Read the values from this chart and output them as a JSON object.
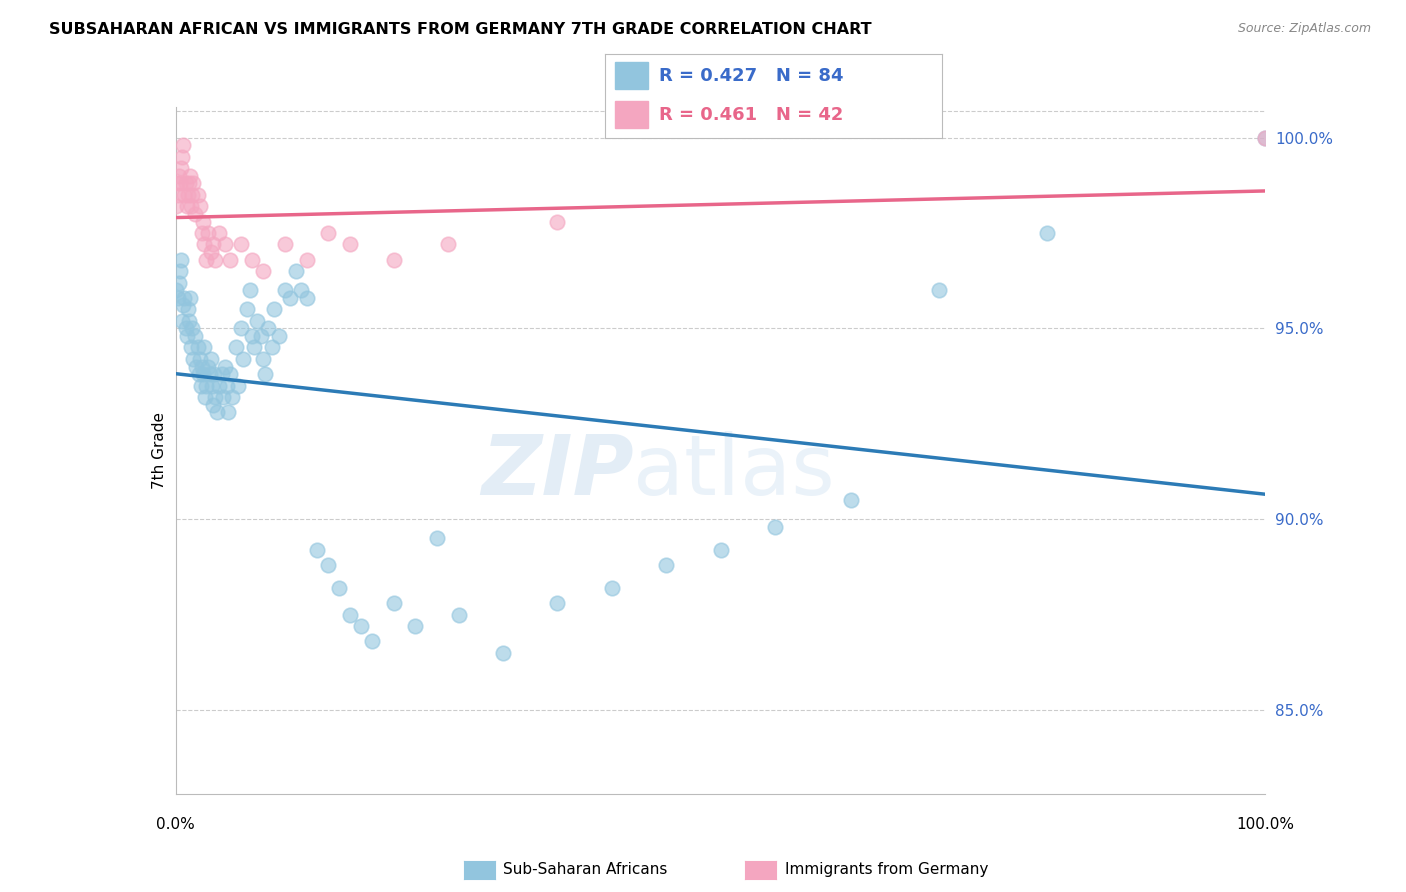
{
  "title": "SUBSAHARAN AFRICAN VS IMMIGRANTS FROM GERMANY 7TH GRADE CORRELATION CHART",
  "source": "Source: ZipAtlas.com",
  "ylabel": "7th Grade",
  "xlim": [
    0.0,
    1.0
  ],
  "ylim": [
    0.828,
    1.008
  ],
  "yticks": [
    0.85,
    0.9,
    0.95,
    1.0
  ],
  "ytick_labels": [
    "85.0%",
    "90.0%",
    "95.0%",
    "100.0%"
  ],
  "blue_R": 0.427,
  "blue_N": 84,
  "pink_R": 0.461,
  "pink_N": 42,
  "blue_color": "#92c5de",
  "pink_color": "#f4a6c0",
  "blue_line_color": "#2c7bb6",
  "pink_line_color": "#d7191c",
  "legend_label_blue": "Sub-Saharan Africans",
  "legend_label_pink": "Immigrants from Germany",
  "watermark_zip": "ZIP",
  "watermark_atlas": "atlas",
  "blue_scatter_x": [
    0.0,
    0.002,
    0.003,
    0.004,
    0.005,
    0.006,
    0.007,
    0.008,
    0.009,
    0.01,
    0.011,
    0.012,
    0.013,
    0.014,
    0.015,
    0.016,
    0.018,
    0.019,
    0.02,
    0.021,
    0.022,
    0.023,
    0.024,
    0.025,
    0.026,
    0.027,
    0.028,
    0.03,
    0.031,
    0.032,
    0.033,
    0.034,
    0.035,
    0.036,
    0.038,
    0.04,
    0.042,
    0.043,
    0.045,
    0.047,
    0.048,
    0.05,
    0.052,
    0.055,
    0.057,
    0.06,
    0.062,
    0.065,
    0.068,
    0.07,
    0.072,
    0.075,
    0.078,
    0.08,
    0.082,
    0.085,
    0.088,
    0.09,
    0.095,
    0.1,
    0.105,
    0.11,
    0.115,
    0.12,
    0.13,
    0.14,
    0.15,
    0.16,
    0.17,
    0.18,
    0.2,
    0.22,
    0.24,
    0.26,
    0.3,
    0.35,
    0.4,
    0.45,
    0.5,
    0.55,
    0.62,
    0.7,
    0.8,
    1.0
  ],
  "blue_scatter_y": [
    0.96,
    0.958,
    0.962,
    0.965,
    0.968,
    0.952,
    0.956,
    0.958,
    0.95,
    0.948,
    0.955,
    0.952,
    0.958,
    0.945,
    0.95,
    0.942,
    0.948,
    0.94,
    0.945,
    0.938,
    0.942,
    0.935,
    0.94,
    0.938,
    0.945,
    0.932,
    0.935,
    0.94,
    0.938,
    0.942,
    0.935,
    0.93,
    0.938,
    0.932,
    0.928,
    0.935,
    0.938,
    0.932,
    0.94,
    0.935,
    0.928,
    0.938,
    0.932,
    0.945,
    0.935,
    0.95,
    0.942,
    0.955,
    0.96,
    0.948,
    0.945,
    0.952,
    0.948,
    0.942,
    0.938,
    0.95,
    0.945,
    0.955,
    0.948,
    0.96,
    0.958,
    0.965,
    0.96,
    0.958,
    0.892,
    0.888,
    0.882,
    0.875,
    0.872,
    0.868,
    0.878,
    0.872,
    0.895,
    0.875,
    0.865,
    0.878,
    0.882,
    0.888,
    0.892,
    0.898,
    0.905,
    0.96,
    0.975,
    1.0
  ],
  "pink_scatter_x": [
    0.0,
    0.001,
    0.002,
    0.003,
    0.004,
    0.005,
    0.006,
    0.007,
    0.008,
    0.009,
    0.01,
    0.011,
    0.012,
    0.013,
    0.014,
    0.015,
    0.016,
    0.018,
    0.02,
    0.022,
    0.024,
    0.025,
    0.026,
    0.028,
    0.03,
    0.032,
    0.034,
    0.036,
    0.04,
    0.045,
    0.05,
    0.06,
    0.07,
    0.08,
    0.1,
    0.12,
    0.14,
    0.16,
    0.2,
    0.25,
    0.35,
    1.0
  ],
  "pink_scatter_y": [
    0.982,
    0.988,
    0.985,
    0.99,
    0.988,
    0.992,
    0.995,
    0.998,
    0.985,
    0.988,
    0.982,
    0.985,
    0.988,
    0.99,
    0.982,
    0.985,
    0.988,
    0.98,
    0.985,
    0.982,
    0.975,
    0.978,
    0.972,
    0.968,
    0.975,
    0.97,
    0.972,
    0.968,
    0.975,
    0.972,
    0.968,
    0.972,
    0.968,
    0.965,
    0.972,
    0.968,
    0.975,
    0.972,
    0.968,
    0.972,
    0.978,
    1.0
  ]
}
